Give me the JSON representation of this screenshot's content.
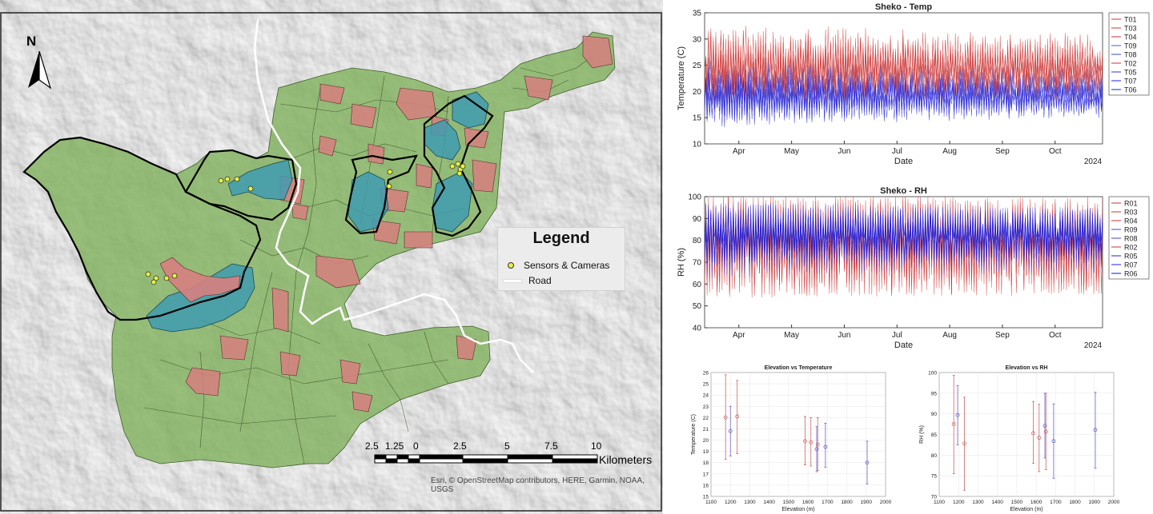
{
  "map": {
    "north_label": "N",
    "legend": {
      "title": "Legend",
      "items": [
        {
          "label": "Sensors & Cameras",
          "symbol": "point",
          "color": "#e5f23a"
        },
        {
          "label": "Road",
          "symbol": "line",
          "color": "#ffffff"
        }
      ]
    },
    "scale_bar": {
      "labels": [
        "2.5",
        "1.25",
        "0",
        "2.5",
        "5",
        "7.5",
        "10"
      ],
      "unit": "Kilometers"
    },
    "attribution": "Esri, © OpenStreetMap contributors, HERE, Garmin, NOAA, USGS",
    "colors": {
      "forest": "#7fb05a",
      "patch": "#d77f7f",
      "study_area": "#3f9bb0",
      "boundary": "#000000",
      "road": "#ffffff"
    }
  },
  "chart_data": [
    {
      "type": "line",
      "title": "Sheko - Temp",
      "xlabel": "Date",
      "ylabel": "Temperature (C)",
      "ylim": [
        10,
        35
      ],
      "yticks": [
        10,
        15,
        20,
        25,
        30,
        35
      ],
      "x_tick_labels": [
        "Apr",
        "May",
        "Jun",
        "Jul",
        "Aug",
        "Sep",
        "Oct"
      ],
      "year_label": "2024",
      "legend_position": "right",
      "series": [
        {
          "name": "T01",
          "color": "#cc3333",
          "band": [
            20,
            31
          ]
        },
        {
          "name": "T03",
          "color": "#cc3333",
          "band": [
            19,
            30
          ]
        },
        {
          "name": "T04",
          "color": "#cc3333",
          "band": [
            19,
            29
          ]
        },
        {
          "name": "T09",
          "color": "#5555cc",
          "band": [
            17,
            24
          ]
        },
        {
          "name": "T08",
          "color": "#4444cc",
          "band": [
            17,
            23
          ]
        },
        {
          "name": "T02",
          "color": "#cc3333",
          "band": [
            18,
            27
          ]
        },
        {
          "name": "T05",
          "color": "#3333dd",
          "band": [
            16,
            22
          ]
        },
        {
          "name": "T07",
          "color": "#2222ee",
          "band": [
            16,
            22
          ]
        },
        {
          "name": "T06",
          "color": "#2222cc",
          "band": [
            15,
            21
          ]
        }
      ]
    },
    {
      "type": "line",
      "title": "Sheko - RH",
      "xlabel": "Date",
      "ylabel": "RH (%)",
      "ylim": [
        40,
        100
      ],
      "yticks": [
        40,
        50,
        60,
        70,
        80,
        90,
        100
      ],
      "x_tick_labels": [
        "Apr",
        "May",
        "Jun",
        "Jul",
        "Aug",
        "Sep",
        "Oct"
      ],
      "year_label": "2024",
      "legend_position": "right",
      "series": [
        {
          "name": "R01",
          "color": "#cc3333",
          "band": [
            55,
            100
          ]
        },
        {
          "name": "R03",
          "color": "#cc3333",
          "band": [
            55,
            100
          ]
        },
        {
          "name": "R04",
          "color": "#cc3333",
          "band": [
            55,
            99
          ]
        },
        {
          "name": "R09",
          "color": "#4444cc",
          "band": [
            65,
            96
          ]
        },
        {
          "name": "R08",
          "color": "#4444cc",
          "band": [
            65,
            96
          ]
        },
        {
          "name": "R02",
          "color": "#cc3333",
          "band": [
            60,
            98
          ]
        },
        {
          "name": "R05",
          "color": "#2222dd",
          "band": [
            70,
            95
          ]
        },
        {
          "name": "R07",
          "color": "#2222ee",
          "band": [
            70,
            95
          ]
        },
        {
          "name": "R06",
          "color": "#1111cc",
          "band": [
            72,
            95
          ]
        }
      ]
    },
    {
      "type": "scatter",
      "title": "Elevation vs Temperature",
      "xlabel": "Elevation (m)",
      "ylabel": "Temperature (C)",
      "xlim": [
        1100,
        2000
      ],
      "ylim": [
        15,
        26
      ],
      "xticks": [
        1100,
        1200,
        1300,
        1400,
        1500,
        1600,
        1700,
        1800,
        1900,
        2000
      ],
      "yticks": [
        15,
        16,
        17,
        18,
        19,
        20,
        21,
        22,
        23,
        24,
        25,
        26
      ],
      "points": [
        {
          "x": 1175,
          "y": 22.0,
          "low": 18.3,
          "high": 25.8,
          "color": "#cc6666"
        },
        {
          "x": 1200,
          "y": 20.8,
          "low": 18.6,
          "high": 23.0,
          "color": "#6666cc"
        },
        {
          "x": 1235,
          "y": 22.1,
          "low": 18.8,
          "high": 25.3,
          "color": "#cc6666"
        },
        {
          "x": 1585,
          "y": 19.9,
          "low": 17.8,
          "high": 22.1,
          "color": "#cc6666"
        },
        {
          "x": 1615,
          "y": 19.8,
          "low": 17.7,
          "high": 22.0,
          "color": "#cc6666"
        },
        {
          "x": 1645,
          "y": 19.2,
          "low": 17.2,
          "high": 21.2,
          "color": "#6666cc"
        },
        {
          "x": 1650,
          "y": 19.6,
          "low": 17.3,
          "high": 22.0,
          "color": "#cc6666"
        },
        {
          "x": 1690,
          "y": 19.4,
          "low": 17.6,
          "high": 21.5,
          "color": "#6666cc"
        },
        {
          "x": 1905,
          "y": 18.0,
          "low": 16.1,
          "high": 19.9,
          "color": "#6666cc"
        }
      ]
    },
    {
      "type": "scatter",
      "title": "Elevation vs RH",
      "xlabel": "Elevation (m)",
      "ylabel": "RH (%)",
      "xlim": [
        1100,
        2000
      ],
      "ylim": [
        70,
        100
      ],
      "xticks": [
        1100,
        1200,
        1300,
        1400,
        1500,
        1600,
        1700,
        1800,
        1900,
        2000
      ],
      "yticks": [
        70,
        75,
        80,
        85,
        90,
        95,
        100
      ],
      "points": [
        {
          "x": 1175,
          "y": 87.5,
          "low": 75.5,
          "high": 99.3,
          "color": "#cc6666"
        },
        {
          "x": 1195,
          "y": 89.7,
          "low": 82.5,
          "high": 96.8,
          "color": "#6666cc"
        },
        {
          "x": 1230,
          "y": 82.8,
          "low": 71.5,
          "high": 94.0,
          "color": "#cc6666"
        },
        {
          "x": 1585,
          "y": 85.3,
          "low": 78.0,
          "high": 93.0,
          "color": "#cc6666"
        },
        {
          "x": 1615,
          "y": 84.2,
          "low": 76.0,
          "high": 92.3,
          "color": "#cc6666"
        },
        {
          "x": 1645,
          "y": 87.1,
          "low": 79.3,
          "high": 95.0,
          "color": "#6666cc"
        },
        {
          "x": 1650,
          "y": 85.7,
          "low": 76.5,
          "high": 95.0,
          "color": "#cc6666"
        },
        {
          "x": 1690,
          "y": 83.4,
          "low": 74.4,
          "high": 92.4,
          "color": "#6666cc"
        },
        {
          "x": 1905,
          "y": 86.1,
          "low": 76.8,
          "high": 95.2,
          "color": "#6666cc"
        }
      ]
    }
  ]
}
